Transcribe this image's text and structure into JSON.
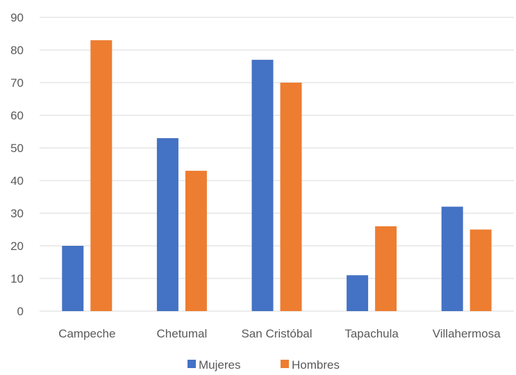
{
  "chart_data": {
    "type": "bar",
    "title": "",
    "xlabel": "",
    "ylabel": "",
    "categories": [
      "Campeche",
      "Chetumal",
      "San Cristóbal",
      "Tapachula",
      "Villahermosa"
    ],
    "series": [
      {
        "name": "Mujeres",
        "color": "#4472C4",
        "values": [
          20,
          53,
          77,
          11,
          32
        ]
      },
      {
        "name": "Hombres",
        "color": "#ED7D31",
        "values": [
          83,
          43,
          70,
          26,
          25
        ]
      }
    ],
    "ylim": [
      0,
      90
    ],
    "yticks": [
      "0",
      "10",
      "20",
      "30",
      "40",
      "50",
      "60",
      "70",
      "80",
      "90"
    ],
    "grid": true,
    "legend_position": "bottom"
  }
}
